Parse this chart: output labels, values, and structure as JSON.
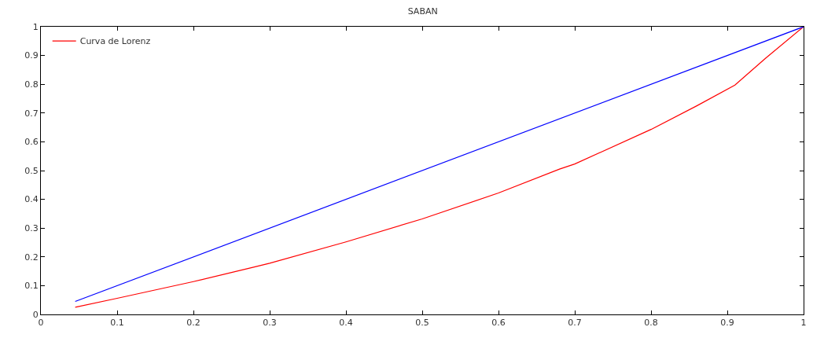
{
  "chart_data": {
    "type": "line",
    "title": "SABAN",
    "xlim": [
      0,
      1
    ],
    "xticks": [
      0,
      0.1,
      0.2,
      0.3,
      0.4,
      0.5,
      0.6,
      0.7,
      0.8,
      0.9,
      1
    ],
    "ylim": [
      0,
      1
    ],
    "yticks": [
      0,
      0.1,
      0.2,
      0.3,
      0.4,
      0.5,
      0.6,
      0.7,
      0.8,
      0.9,
      1
    ],
    "grid": false,
    "legend": "top left",
    "marker": "none",
    "line_style": "solid",
    "series": [
      {
        "name": "Curva de Lorenz",
        "color": "#ff0000",
        "x": [
          0.045,
          0.1,
          0.2,
          0.28,
          0.3,
          0.4,
          0.5,
          0.6,
          0.68,
          0.7,
          0.8,
          0.86,
          0.91,
          0.95,
          1
        ],
        "values": [
          0.025,
          0.056,
          0.114,
          0.165,
          0.178,
          0.252,
          0.332,
          0.422,
          0.505,
          0.523,
          0.643,
          0.725,
          0.797,
          0.89,
          1
        ]
      },
      {
        "color": "#0000ff",
        "x": [
          0.045,
          1
        ],
        "values": [
          0.045,
          1
        ]
      }
    ]
  }
}
